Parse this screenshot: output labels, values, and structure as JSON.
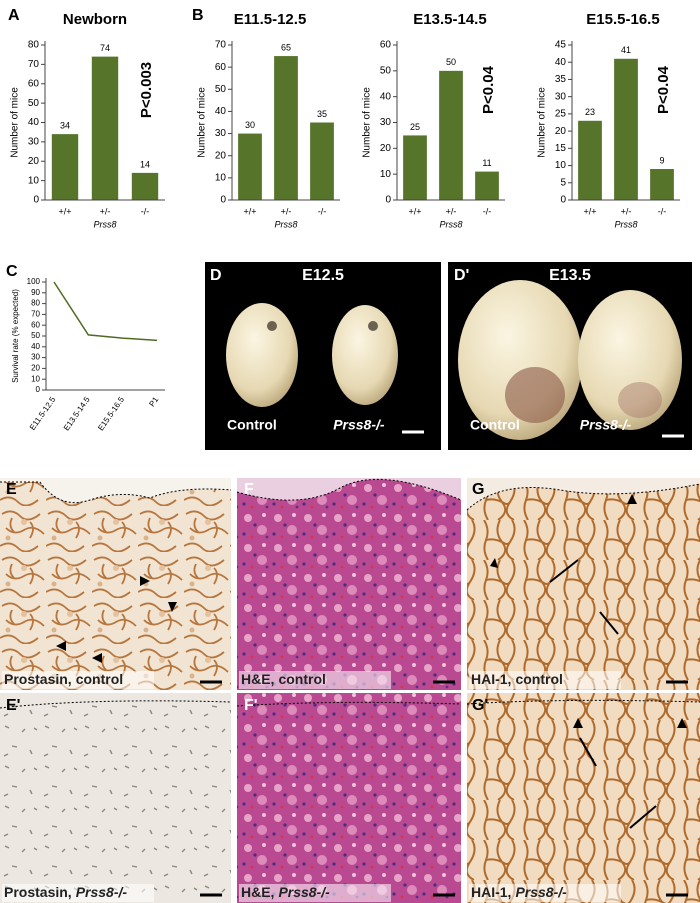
{
  "panel_letters": [
    "A",
    "B",
    "C",
    "D",
    "D'",
    "E",
    "F",
    "G",
    "E'",
    "F'",
    "G'"
  ],
  "chart_data": [
    {
      "type": "bar",
      "title": "Newborn",
      "categories": [
        "+/+",
        "+/-",
        "-/-"
      ],
      "values": [
        34,
        74,
        14
      ],
      "color": "#56752b",
      "ylim": [
        0,
        80
      ],
      "yticks": [
        0,
        10,
        20,
        30,
        40,
        50,
        60,
        70,
        80
      ],
      "y_label": "Number of mice",
      "x_label": "Prss8",
      "annotation": "P<0.003"
    },
    {
      "type": "bar",
      "title": "E11.5-12.5",
      "categories": [
        "+/+",
        "+/-",
        "-/-"
      ],
      "values": [
        30,
        65,
        35
      ],
      "color": "#56752b",
      "ylim": [
        0,
        70
      ],
      "yticks": [
        0,
        10,
        20,
        30,
        40,
        50,
        60,
        70
      ],
      "y_label": "Number of mice",
      "x_label": "Prss8"
    },
    {
      "type": "bar",
      "title": "E13.5-14.5",
      "categories": [
        "+/+",
        "+/-",
        "-/-"
      ],
      "values": [
        25,
        50,
        11
      ],
      "color": "#56752b",
      "ylim": [
        0,
        60
      ],
      "yticks": [
        0,
        10,
        20,
        30,
        40,
        50,
        60
      ],
      "y_label": "Number of mice",
      "x_label": "Prss8",
      "annotation": "P<0.04"
    },
    {
      "type": "bar",
      "title": "E15.5-16.5",
      "categories": [
        "+/+",
        "+/-",
        "-/-"
      ],
      "values": [
        23,
        41,
        9
      ],
      "color": "#56752b",
      "ylim": [
        0,
        45
      ],
      "yticks": [
        0,
        5,
        10,
        15,
        20,
        25,
        30,
        35,
        40,
        45
      ],
      "y_label": "Number of mice",
      "x_label": "Prss8",
      "annotation": "P<0.04"
    },
    {
      "type": "line",
      "categories": [
        "E11.5-12.5",
        "E13.5-14.5",
        "E15.5-16.5",
        "P1"
      ],
      "values": [
        100,
        51,
        48,
        46
      ],
      "color": "#4f6b22",
      "ylim": [
        0,
        100
      ],
      "yticks": [
        0,
        10,
        20,
        30,
        40,
        50,
        60,
        70,
        80,
        90,
        100
      ],
      "y_label": "Survival rate (% expected)"
    }
  ],
  "photos": [
    {
      "title": "E12.5",
      "labels": [
        "Control",
        "Prss8-/-"
      ]
    },
    {
      "title": "E13.5",
      "labels": [
        "Control",
        "Prss8-/-"
      ]
    }
  ],
  "micrographs": [
    {
      "stain": "Prostasin,",
      "genotype": "control"
    },
    {
      "stain": "H&E,",
      "genotype": "control"
    },
    {
      "stain": "HAI-1,",
      "genotype": "control"
    },
    {
      "stain": "Prostasin,",
      "genotype": "Prss8-/-"
    },
    {
      "stain": "H&E,",
      "genotype": "Prss8-/-"
    },
    {
      "stain": "HAI-1,",
      "genotype": "Prss8-/-"
    }
  ]
}
